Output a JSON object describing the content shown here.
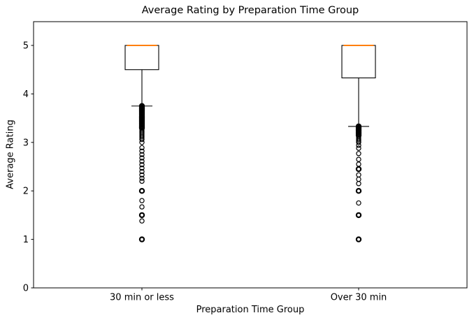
{
  "chart_data": {
    "type": "boxplot",
    "title": "Average Rating by Preparation Time Group",
    "xlabel": "Preparation Time Group",
    "ylabel": "Average Rating",
    "categories": [
      "30 min or less",
      "Over 30 min"
    ],
    "yticks": [
      0,
      1,
      2,
      3,
      4,
      5
    ],
    "ylim": [
      0,
      5.49
    ],
    "xlim": [
      0.5,
      2.5
    ],
    "grid": false,
    "legend": "none",
    "colors": {
      "box_edge": "#000000",
      "whisker": "#000000",
      "median": "#ff7f0e",
      "outlier_edge": "#000000",
      "background": "#ffffff",
      "text": "#000000"
    },
    "series": [
      {
        "name": "30 min or less",
        "position": 1,
        "q1": 4.5,
        "median": 5.0,
        "q3": 5.0,
        "whisker_low": 3.75,
        "whisker_high": 5.0,
        "outliers": [
          [
            3.75,
            2
          ],
          [
            3.72,
            2
          ],
          [
            3.69,
            2
          ],
          [
            3.66,
            2
          ],
          [
            3.63,
            2
          ],
          [
            3.6,
            2
          ],
          [
            3.57,
            2
          ],
          [
            3.54,
            2
          ],
          [
            3.51,
            2
          ],
          [
            3.48,
            2
          ],
          [
            3.45,
            2
          ],
          [
            3.42,
            2
          ],
          [
            3.39,
            2
          ],
          [
            3.36,
            2
          ],
          [
            3.33,
            2
          ],
          [
            3.3,
            2
          ],
          [
            3.27,
            1
          ],
          [
            3.24,
            1
          ],
          [
            3.21,
            1
          ],
          [
            3.18,
            1
          ],
          [
            3.15,
            1
          ],
          [
            3.12,
            1
          ],
          [
            3.09,
            1
          ],
          [
            3.06,
            1
          ],
          [
            3.0,
            1
          ],
          [
            2.89,
            1
          ],
          [
            2.82,
            1
          ],
          [
            2.75,
            1
          ],
          [
            2.68,
            1
          ],
          [
            2.61,
            1
          ],
          [
            2.54,
            1
          ],
          [
            2.47,
            1
          ],
          [
            2.4,
            1
          ],
          [
            2.33,
            1
          ],
          [
            2.26,
            1
          ],
          [
            2.2,
            1
          ],
          [
            2.0,
            2
          ],
          [
            1.8,
            1
          ],
          [
            1.67,
            1
          ],
          [
            1.5,
            2
          ],
          [
            1.38,
            1
          ],
          [
            1.0,
            2
          ]
        ]
      },
      {
        "name": "Over 30 min",
        "position": 2,
        "q1": 4.33,
        "median": 5.0,
        "q3": 5.0,
        "whisker_low": 3.33,
        "whisker_high": 5.0,
        "outliers": [
          [
            3.33,
            2
          ],
          [
            3.3,
            2
          ],
          [
            3.27,
            2
          ],
          [
            3.24,
            2
          ],
          [
            3.21,
            2
          ],
          [
            3.18,
            2
          ],
          [
            3.15,
            2
          ],
          [
            3.12,
            1
          ],
          [
            3.09,
            1
          ],
          [
            3.06,
            1
          ],
          [
            3.03,
            1
          ],
          [
            3.0,
            1
          ],
          [
            2.94,
            1
          ],
          [
            2.88,
            1
          ],
          [
            2.77,
            1
          ],
          [
            2.65,
            1
          ],
          [
            2.55,
            1
          ],
          [
            2.45,
            2
          ],
          [
            2.33,
            1
          ],
          [
            2.24,
            1
          ],
          [
            2.15,
            1
          ],
          [
            2.0,
            2
          ],
          [
            1.75,
            1
          ],
          [
            1.5,
            2
          ],
          [
            1.0,
            2
          ]
        ]
      }
    ]
  }
}
